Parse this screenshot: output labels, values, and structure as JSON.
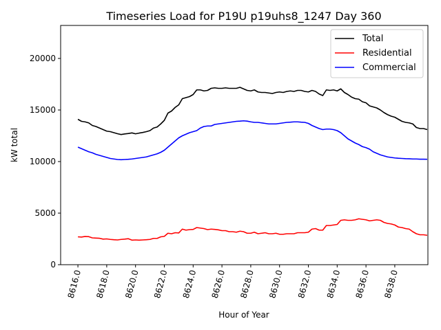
{
  "chart_data": {
    "type": "line",
    "title": "Timeseries Load for P19U p19uhs8_1247  Day 360",
    "xlabel": "Hour of Year",
    "ylabel": "kW total",
    "xlim": [
      8614.8,
      8640.3
    ],
    "ylim": [
      0,
      23200
    ],
    "x_ticks": [
      8616,
      8618,
      8620,
      8622,
      8624,
      8626,
      8628,
      8630,
      8632,
      8634,
      8636,
      8638
    ],
    "x_tick_labels": [
      "8616.0",
      "8618.0",
      "8620.0",
      "8622.0",
      "8624.0",
      "8626.0",
      "8628.0",
      "8630.0",
      "8632.0",
      "8634.0",
      "8636.0",
      "8638.0"
    ],
    "y_ticks": [
      0,
      5000,
      10000,
      15000,
      20000
    ],
    "y_tick_labels": [
      "0",
      "5000",
      "10000",
      "15000",
      "20000"
    ],
    "legend_position": "top-right",
    "x_start": 8616,
    "x_step": 0.25,
    "series": [
      {
        "name": "Total",
        "color": "#000000",
        "values": [
          14100,
          13900,
          13850,
          13750,
          13500,
          13400,
          13250,
          13100,
          12950,
          12900,
          12800,
          12700,
          12620,
          12680,
          12720,
          12780,
          12690,
          12760,
          12820,
          12900,
          13000,
          13250,
          13350,
          13650,
          14000,
          14700,
          14900,
          15250,
          15500,
          16100,
          16200,
          16300,
          16500,
          16950,
          16950,
          16850,
          16900,
          17100,
          17150,
          17100,
          17100,
          17150,
          17100,
          17100,
          17100,
          17200,
          17050,
          16900,
          16850,
          16950,
          16750,
          16700,
          16700,
          16650,
          16600,
          16700,
          16750,
          16700,
          16800,
          16850,
          16800,
          16900,
          16900,
          16800,
          16750,
          16900,
          16800,
          16550,
          16400,
          16950,
          16900,
          16950,
          16850,
          17050,
          16700,
          16500,
          16250,
          16100,
          16050,
          15800,
          15700,
          15400,
          15300,
          15200,
          15000,
          14750,
          14550,
          14400,
          14300,
          14100,
          13900,
          13800,
          13750,
          13650,
          13300,
          13200,
          13200,
          13100
        ]
      },
      {
        "name": "Residential",
        "color": "#ff0000",
        "values": [
          2700,
          2680,
          2740,
          2720,
          2600,
          2580,
          2560,
          2480,
          2500,
          2450,
          2420,
          2400,
          2450,
          2480,
          2520,
          2380,
          2400,
          2380,
          2400,
          2420,
          2450,
          2550,
          2550,
          2700,
          2750,
          3050,
          3000,
          3100,
          3080,
          3450,
          3350,
          3400,
          3420,
          3600,
          3550,
          3500,
          3400,
          3450,
          3420,
          3380,
          3300,
          3300,
          3200,
          3200,
          3150,
          3250,
          3200,
          3050,
          3050,
          3150,
          3000,
          3050,
          3100,
          3000,
          3000,
          3050,
          2950,
          2950,
          3000,
          3000,
          3000,
          3100,
          3100,
          3100,
          3150,
          3450,
          3500,
          3350,
          3350,
          3800,
          3800,
          3850,
          3900,
          4300,
          4350,
          4300,
          4300,
          4350,
          4450,
          4400,
          4350,
          4250,
          4300,
          4350,
          4300,
          4100,
          4000,
          3950,
          3850,
          3650,
          3600,
          3500,
          3450,
          3200,
          3000,
          2900,
          2900,
          2850
        ]
      },
      {
        "name": "Commercial",
        "color": "#0000ff",
        "values": [
          11400,
          11250,
          11100,
          10950,
          10850,
          10700,
          10600,
          10500,
          10400,
          10300,
          10250,
          10200,
          10180,
          10200,
          10220,
          10250,
          10300,
          10350,
          10400,
          10450,
          10550,
          10650,
          10750,
          10900,
          11100,
          11400,
          11700,
          12000,
          12300,
          12500,
          12650,
          12800,
          12900,
          13000,
          13250,
          13400,
          13450,
          13450,
          13600,
          13650,
          13700,
          13750,
          13800,
          13850,
          13900,
          13920,
          13950,
          13920,
          13850,
          13800,
          13800,
          13750,
          13700,
          13650,
          13650,
          13650,
          13700,
          13750,
          13800,
          13820,
          13850,
          13850,
          13820,
          13800,
          13700,
          13500,
          13350,
          13200,
          13100,
          13150,
          13150,
          13100,
          13000,
          12800,
          12500,
          12200,
          12000,
          11800,
          11650,
          11450,
          11350,
          11200,
          10950,
          10800,
          10650,
          10550,
          10450,
          10400,
          10350,
          10320,
          10300,
          10280,
          10270,
          10250,
          10250,
          10230,
          10230,
          10220
        ]
      }
    ]
  }
}
